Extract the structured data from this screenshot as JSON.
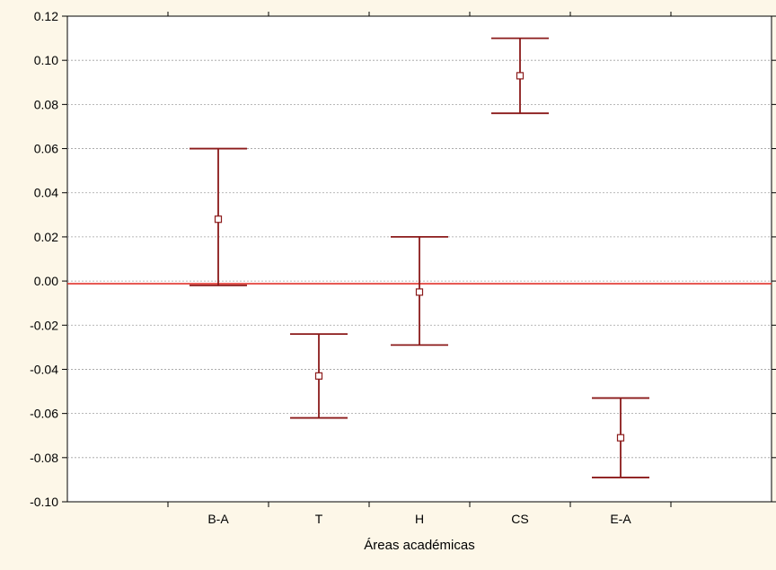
{
  "chart_data": {
    "type": "errorbar",
    "title": "",
    "xlabel": "Áreas académicas",
    "ylabel": "",
    "ylim": [
      -0.1,
      0.12
    ],
    "yticks": [
      0.12,
      0.1,
      0.08,
      0.06,
      0.04,
      0.02,
      0.0,
      -0.02,
      -0.04,
      -0.06,
      -0.08,
      -0.1
    ],
    "ytick_labels": [
      "0.12",
      "0.10",
      "0.08",
      "0.06",
      "0.04",
      "0.02",
      "0.00",
      "-0.02",
      "-0.04",
      "-0.06",
      "-0.08",
      "-0.10"
    ],
    "categories": [
      "B-A",
      "T",
      "H",
      "CS",
      "E-A"
    ],
    "means": [
      0.028,
      -0.043,
      -0.005,
      0.093,
      -0.071
    ],
    "lower": [
      -0.002,
      -0.062,
      -0.029,
      0.076,
      -0.089
    ],
    "upper": [
      0.06,
      -0.024,
      0.02,
      0.11,
      -0.053
    ],
    "reference_line": 0.0,
    "grid": "horizontal-dotted",
    "colors": {
      "background": "#fdf7e8",
      "plot_background": "#ffffff",
      "errorbar": "#8b1a1a",
      "reference_line": "#e0302a",
      "grid": "#a0a0a0"
    }
  }
}
